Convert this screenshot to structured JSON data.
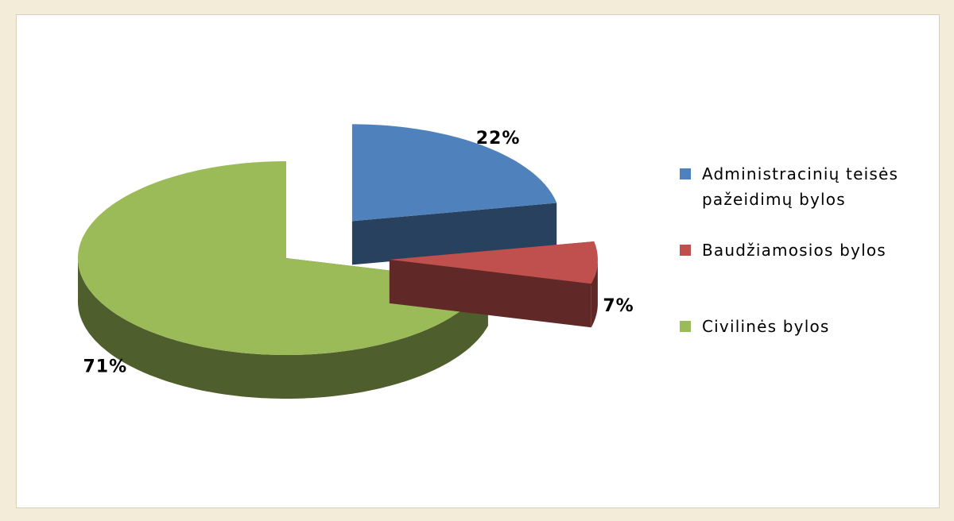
{
  "chart_data": {
    "type": "pie",
    "categories": [
      "Administracinių teisės pažeidimų bylos",
      "Baudžiamosios bylos",
      "Civilinės bylos"
    ],
    "values": [
      22,
      7,
      71
    ],
    "value_labels": [
      "22%",
      "7%",
      "71%"
    ],
    "colors": [
      "#4f81bd",
      "#c0504d",
      "#9bbb59"
    ],
    "legend": "right",
    "exploded": [
      true,
      true,
      false
    ]
  }
}
